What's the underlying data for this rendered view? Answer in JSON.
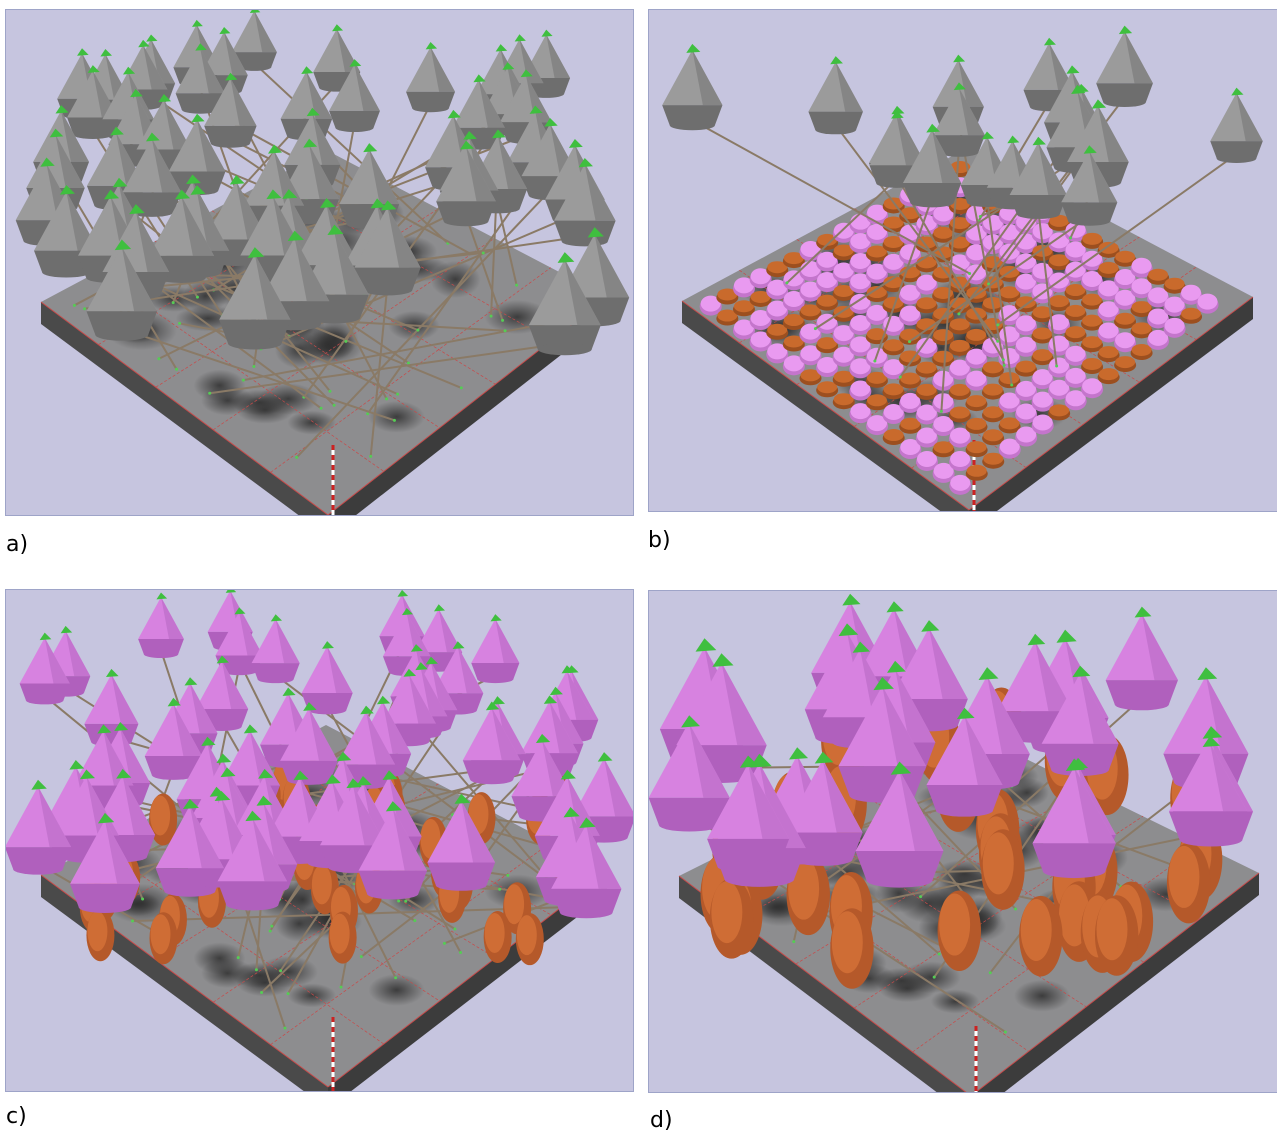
{
  "figure": {
    "panels": [
      {
        "label": "a)",
        "cone_color": "#9b9b9b",
        "show_cones": true,
        "show_pads": false,
        "show_ovals": false,
        "cone_count": 60
      },
      {
        "label": "b)",
        "cone_color": "#9b9b9b",
        "show_cones": true,
        "show_pads": true,
        "show_ovals": false,
        "cone_count": 18
      },
      {
        "label": "c)",
        "cone_color": "#d782e0",
        "show_cones": true,
        "show_pads": false,
        "show_ovals": true,
        "cone_count": 60
      },
      {
        "label": "d)",
        "cone_color": "#d782e0",
        "show_cones": true,
        "show_pads": false,
        "show_ovals": true,
        "cone_count": 26
      }
    ],
    "colors": {
      "background": "#c6c5df",
      "tip": "#3fbf3f",
      "stem": "#8a7a66",
      "board": "#6b6b6b",
      "pad_pink": "#e99af0",
      "pad_orange": "#c96a2c"
    }
  }
}
